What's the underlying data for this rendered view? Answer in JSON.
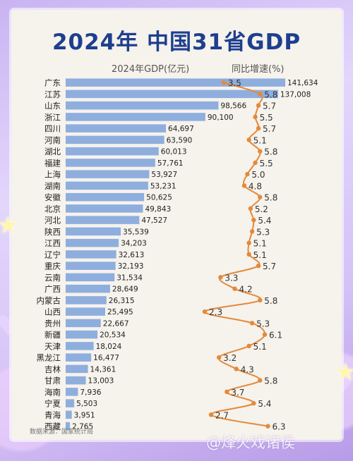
{
  "title": "2024年 中国31省GDP",
  "header_gdp": "2024年GDP(亿元)",
  "header_growth": "同比增速(%)",
  "source": "数据来源：国家统计局",
  "watermark": "@烽火戏诸侯",
  "colors": {
    "bar": "#8eaede",
    "line": "#e38a3a",
    "title": "#1d3f8f"
  },
  "chart_data": {
    "type": "bar",
    "orientation": "horizontal",
    "categories": [
      "广东",
      "江苏",
      "山东",
      "浙江",
      "四川",
      "河南",
      "湖北",
      "福建",
      "上海",
      "湖南",
      "安徽",
      "北京",
      "河北",
      "陕西",
      "江西",
      "辽宁",
      "重庆",
      "云南",
      "广西",
      "内蒙古",
      "山西",
      "贵州",
      "新疆",
      "天津",
      "黑龙江",
      "吉林",
      "甘肃",
      "海南",
      "宁夏",
      "青海",
      "西藏"
    ],
    "series": [
      {
        "name": "2024年GDP(亿元)",
        "type": "bar",
        "values": [
          141634,
          137008,
          98566,
          90100,
          64697,
          63590,
          60013,
          57761,
          53927,
          53231,
          50625,
          49843,
          47527,
          35539,
          34203,
          32613,
          32193,
          31534,
          28649,
          26315,
          25495,
          22667,
          20534,
          18024,
          16477,
          14361,
          13003,
          7936,
          5503,
          3951,
          2765
        ],
        "labels": [
          "141,634",
          "137,008",
          "98,566",
          "90,100",
          "64,697",
          "63,590",
          "60,013",
          "57,761",
          "53,927",
          "53,231",
          "50,625",
          "49,843",
          "47,527",
          "35,539",
          "34,203",
          "32,613",
          "32,193",
          "31,534",
          "28,649",
          "26,315",
          "25,495",
          "22,667",
          "20,534",
          "18,024",
          "16,477",
          "14,361",
          "13,003",
          "7,936",
          "5,503",
          "3,951",
          "2,765"
        ]
      },
      {
        "name": "同比增速(%)",
        "type": "line",
        "values": [
          3.5,
          5.8,
          5.7,
          5.5,
          5.7,
          5.1,
          5.8,
          5.5,
          5.0,
          4.8,
          5.8,
          5.2,
          5.4,
          5.3,
          5.1,
          5.1,
          5.7,
          3.3,
          4.2,
          5.8,
          2.3,
          5.3,
          6.1,
          5.1,
          3.2,
          4.3,
          5.8,
          3.7,
          5.4,
          2.7,
          6.3
        ],
        "labels": [
          "3.5",
          "5.8",
          "5.7",
          "5.5",
          "5.7",
          "5.1",
          "5.8",
          "5.5",
          "5.0",
          "4.8",
          "5.8",
          "5.2",
          "5.4",
          "5.3",
          "5.1",
          "5.1",
          "5.7",
          "3.3",
          "4.2",
          "5.8",
          "2.3",
          "5.3",
          "6.1",
          "5.1",
          "3.2",
          "4.3",
          "5.8",
          "3.7",
          "5.4",
          "2.7",
          "6.3"
        ]
      }
    ]
  }
}
